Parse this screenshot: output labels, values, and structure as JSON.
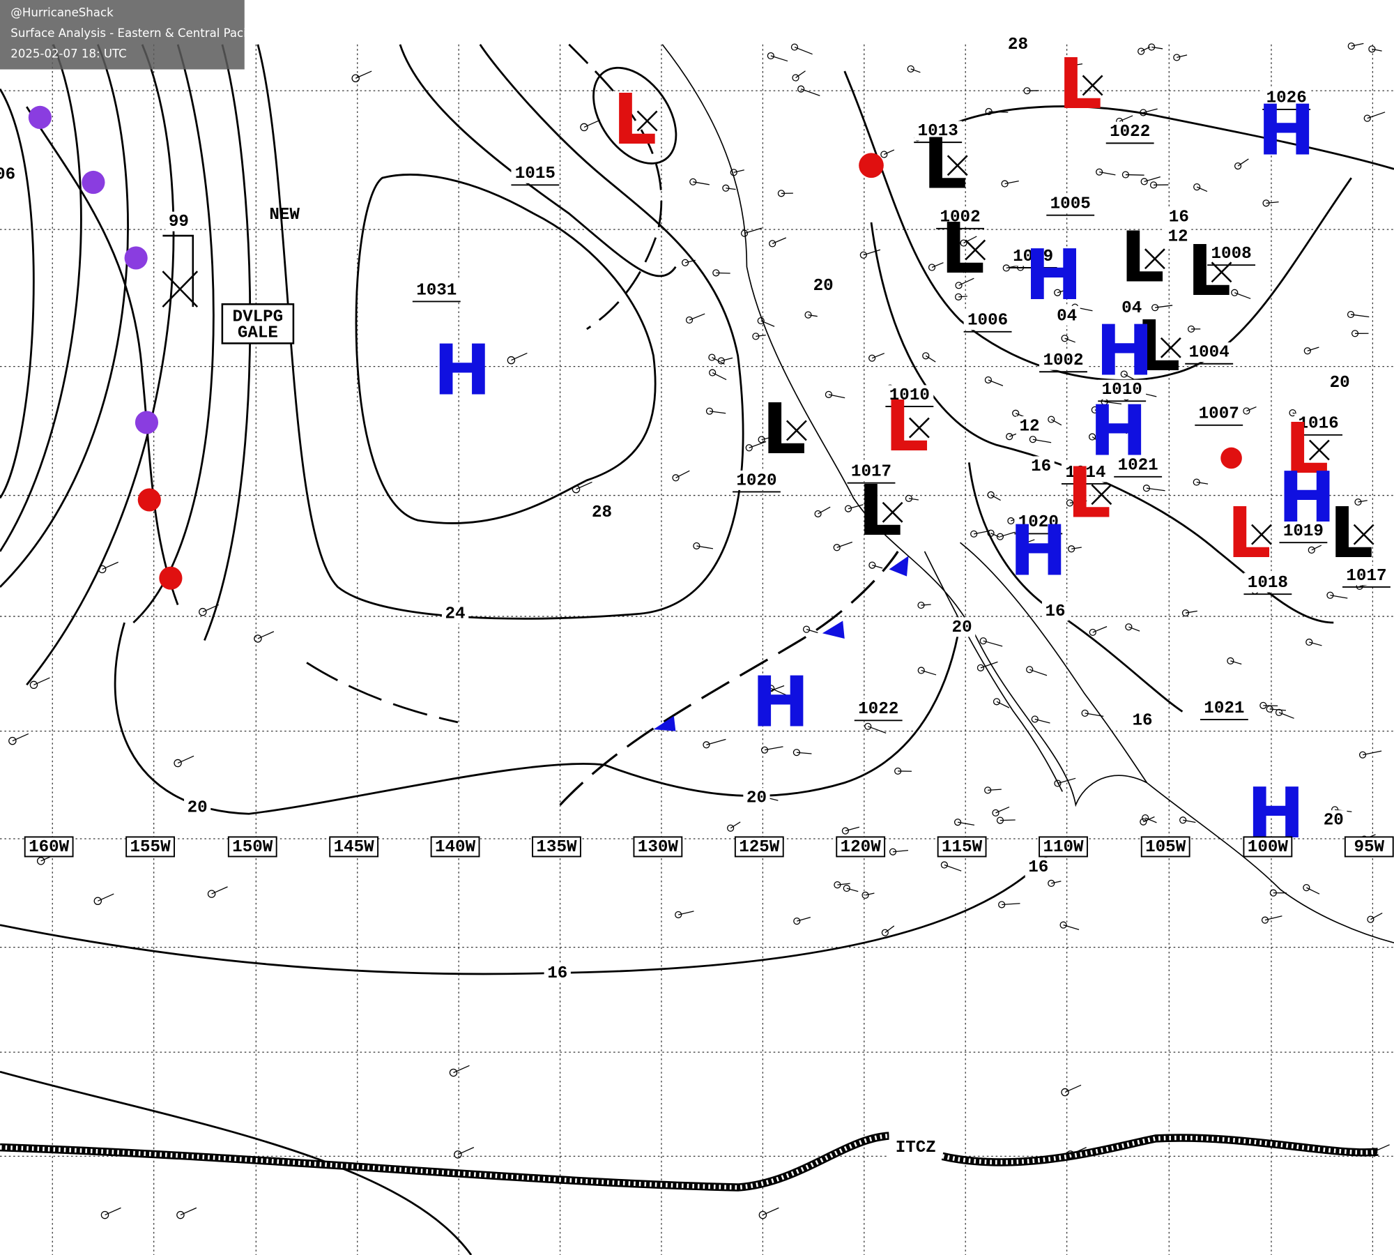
{
  "header": {
    "handle": "@HurricaneShack",
    "title": "Surface Analysis - Eastern & Central Pacific Ocean",
    "timestamp": "2025-02-07 18: UTC"
  },
  "longitudes": [
    "160W",
    "155W",
    "150W",
    "145W",
    "140W",
    "135W",
    "130W",
    "125W",
    "120W",
    "115W",
    "110W",
    "105W",
    "100W",
    "95W"
  ],
  "isobar_labels": [
    "1015",
    "1031",
    "1020",
    "1022",
    "1013",
    "1022",
    "1026",
    "1002",
    "1005",
    "1009",
    "1008",
    "1006",
    "1010",
    "1002",
    "1004",
    "1010",
    "1007",
    "1016",
    "1017",
    "1014",
    "1021",
    "1020",
    "1019",
    "1017",
    "1021",
    "1018",
    "06",
    "99",
    "28",
    "24",
    "20",
    "20",
    "20",
    "20",
    "16",
    "16",
    "16",
    "16",
    "16",
    "12",
    "28",
    "20",
    "20",
    "16",
    "12",
    "04",
    "04"
  ],
  "centers": [
    {
      "symbol": "H",
      "color": "#1010e0"
    },
    {
      "symbol": "H",
      "color": "#1010e0"
    },
    {
      "symbol": "L",
      "color": "#e01010"
    },
    {
      "symbol": "L",
      "color": "#000000"
    },
    {
      "symbol": "L",
      "color": "#000000"
    },
    {
      "symbol": "L",
      "color": "#000000"
    },
    {
      "symbol": "L",
      "color": "#e01010"
    },
    {
      "symbol": "H",
      "color": "#1010e0"
    },
    {
      "symbol": "L",
      "color": "#e01010"
    },
    {
      "symbol": "H",
      "color": "#1010e0"
    },
    {
      "symbol": "L",
      "color": "#e01010"
    },
    {
      "symbol": "L",
      "color": "#e01010"
    },
    {
      "symbol": "H",
      "color": "#1010e0"
    },
    {
      "symbol": "L",
      "color": "#000000"
    },
    {
      "symbol": "H",
      "color": "#1010e0"
    },
    {
      "symbol": "L",
      "color": "#000000"
    },
    {
      "symbol": "L",
      "color": "#000000"
    },
    {
      "symbol": "H",
      "color": "#1010e0"
    },
    {
      "symbol": "L",
      "color": "#e01010"
    },
    {
      "symbol": "L",
      "color": "#000000"
    },
    {
      "symbol": "H",
      "color": "#1010e0"
    },
    {
      "symbol": "L",
      "color": "#000000"
    },
    {
      "symbol": "H",
      "color": "#1010e0"
    }
  ],
  "labels": {
    "new": "NEW",
    "itcz": "ITCZ",
    "gale": [
      "DVLPG",
      "GALE"
    ]
  }
}
